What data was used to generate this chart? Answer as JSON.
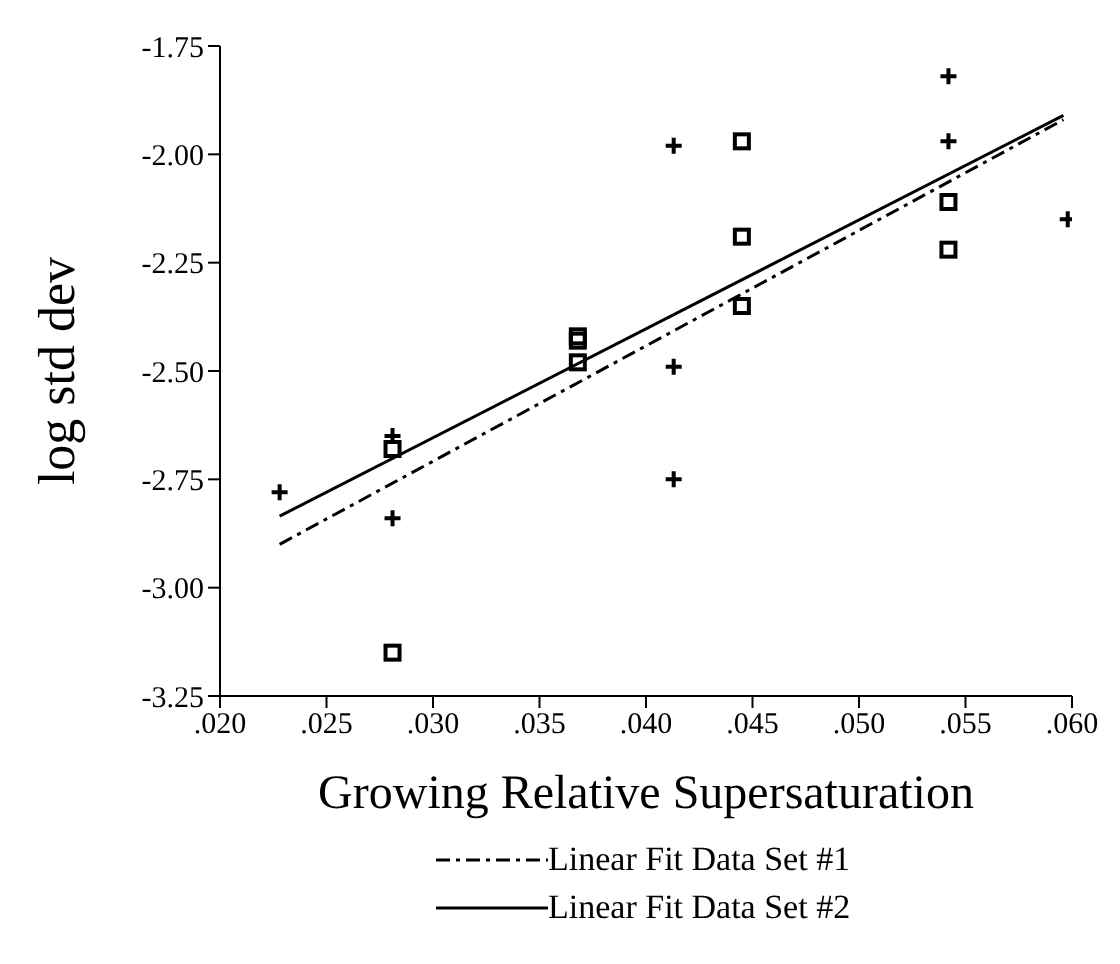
{
  "chart_data": {
    "type": "scatter",
    "xlabel": "Growing Relative Supersaturation",
    "ylabel": "log std dev",
    "xlim": [
      0.02,
      0.06
    ],
    "ylim": [
      -3.25,
      -1.75
    ],
    "xticks": [
      {
        "value": 0.02,
        "label": ".020"
      },
      {
        "value": 0.025,
        "label": ".025"
      },
      {
        "value": 0.03,
        "label": ".030"
      },
      {
        "value": 0.035,
        "label": ".035"
      },
      {
        "value": 0.04,
        "label": ".040"
      },
      {
        "value": 0.045,
        "label": ".045"
      },
      {
        "value": 0.05,
        "label": ".050"
      },
      {
        "value": 0.055,
        "label": ".055"
      },
      {
        "value": 0.06,
        "label": ".060"
      }
    ],
    "yticks": [
      -3.25,
      {
        "value": -3.0,
        "label": "-3.00"
      },
      -2.75,
      {
        "value": -2.5,
        "label": "-2.50"
      },
      -2.25,
      {
        "value": -2.0,
        "label": "-2.00"
      },
      -1.75
    ],
    "grid": false,
    "legend": "bottom",
    "series": [
      {
        "type": "scatter",
        "marker": "cross",
        "color": "#000000",
        "x": [
          0.0228,
          0.0281,
          0.0281,
          0.0413,
          0.0413,
          0.0413,
          0.0542,
          0.0542,
          0.0598
        ],
        "values": [
          -2.78,
          -2.65,
          -2.84,
          -1.98,
          -2.49,
          -2.75,
          -1.82,
          -1.97,
          -2.15
        ]
      },
      {
        "type": "scatter",
        "marker": "square",
        "color": "#000000",
        "x": [
          0.0281,
          0.0281,
          0.0368,
          0.0368,
          0.0368,
          0.0445,
          0.0445,
          0.0445,
          0.0542,
          0.0542
        ],
        "values": [
          -2.68,
          -3.15,
          -2.42,
          -2.43,
          -2.48,
          -1.97,
          -2.19,
          -2.35,
          -2.11,
          -2.22
        ]
      },
      {
        "type": "line",
        "name": "Linear Fit Data Set #1",
        "line_style": "dashdot",
        "color": "#000000",
        "x": [
          0.0228,
          0.0596
        ],
        "values": [
          -2.9,
          -1.92
        ]
      },
      {
        "type": "line",
        "name": "Linear Fit Data Set #2",
        "line_style": "solid",
        "color": "#000000",
        "x": [
          0.0228,
          0.0596
        ],
        "values": [
          -2.835,
          -1.91
        ]
      }
    ]
  }
}
